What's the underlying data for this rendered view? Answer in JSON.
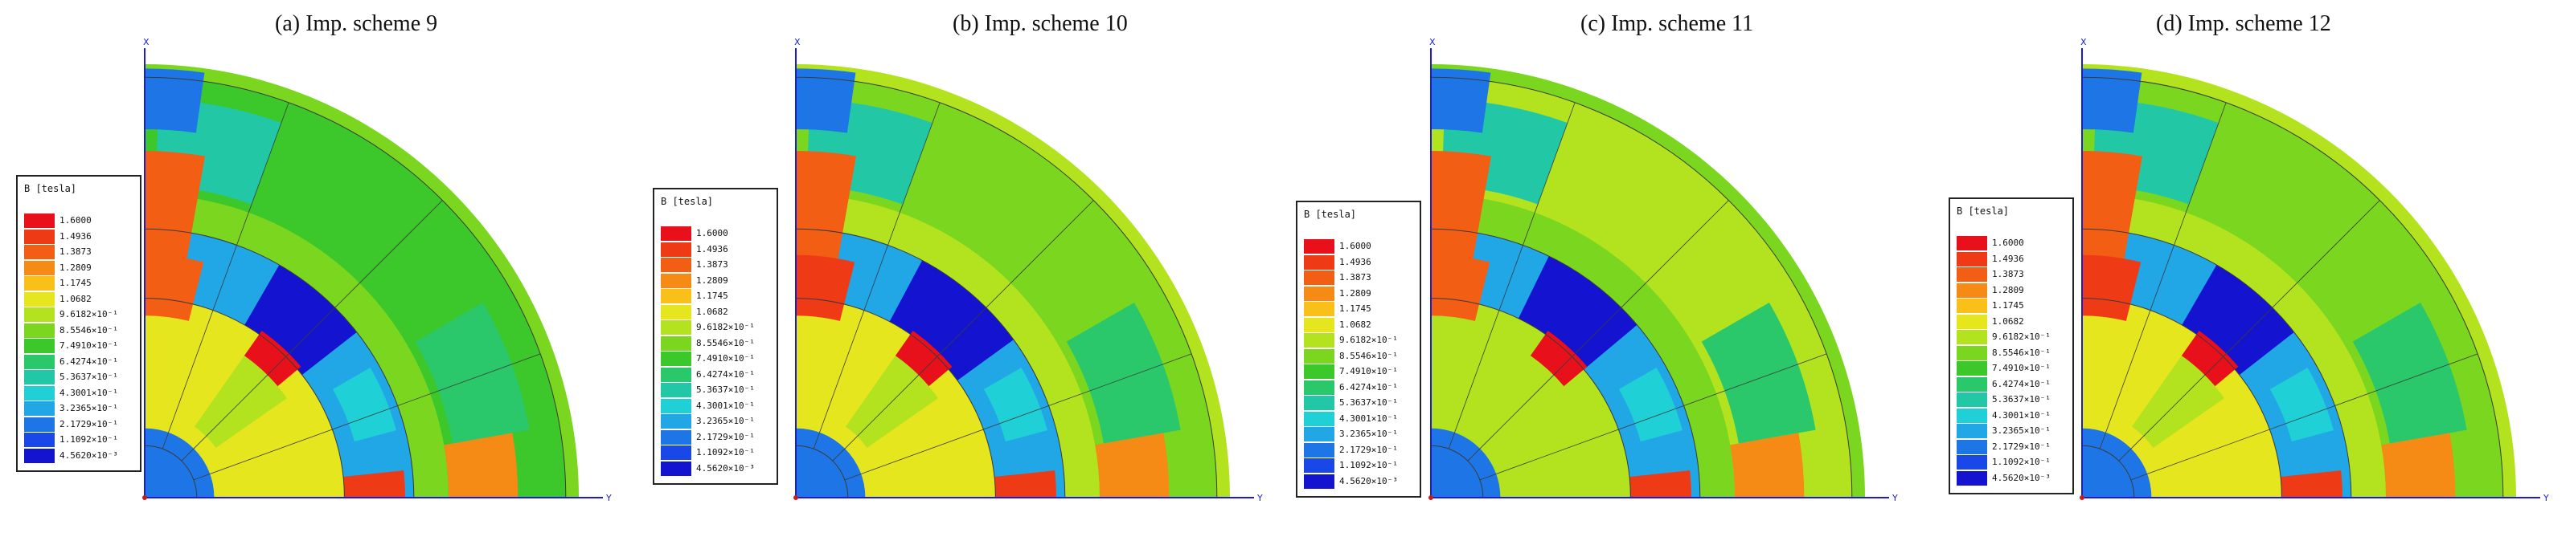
{
  "panels": [
    {
      "title": "(a) Imp. scheme 9"
    },
    {
      "title": "(b) Imp. scheme 10"
    },
    {
      "title": "(c) Imp. scheme 11"
    },
    {
      "title": "(d) Imp. scheme 12"
    }
  ],
  "legend": {
    "title": "B [tesla]",
    "values": [
      "1.6000",
      "1.4936",
      "1.3873",
      "1.2809",
      "1.1745",
      "1.0682",
      "9.6182×10⁻¹",
      "8.5546×10⁻¹",
      "7.4910×10⁻¹",
      "6.4274×10⁻¹",
      "5.3637×10⁻¹",
      "4.3001×10⁻¹",
      "3.2365×10⁻¹",
      "2.1729×10⁻¹",
      "1.1092×10⁻¹",
      "4.5620×10⁻³"
    ],
    "colors": [
      "#e8101a",
      "#ee3b16",
      "#f25e14",
      "#f58a14",
      "#f9c01a",
      "#e6e61e",
      "#b2e31e",
      "#7ad61f",
      "#3cc82a",
      "#2ac86a",
      "#22c8a6",
      "#1fd0d6",
      "#21a6e6",
      "#1e76e6",
      "#1a48e8",
      "#1414d0"
    ]
  },
  "axis_labels": {
    "x": "X",
    "y": "Y"
  }
}
